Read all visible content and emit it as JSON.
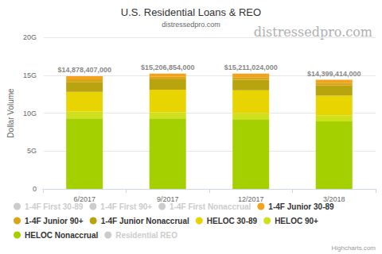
{
  "chart_data": {
    "type": "bar",
    "title": "U.S. Residential Loans & REO",
    "subtitle": "distressedpro.com",
    "annotations": [
      "distressedpro.com",
      "Highcharts.com"
    ],
    "y_label": "Dollar Volume",
    "categories": [
      "6/2017",
      "9/2017",
      "12/2017",
      "3/2018"
    ],
    "stacked": true,
    "grid": true,
    "legend": "bottom",
    "series": [
      {
        "name": "1-4F First 30-89",
        "color": "#cccccc",
        "values": [
          null,
          null,
          null,
          null
        ]
      },
      {
        "name": "1-4F First 90+",
        "color": "#cccccc",
        "values": [
          null,
          null,
          null,
          null
        ]
      },
      {
        "name": "1-4F First Nonaccrual",
        "color": "#cccccc",
        "values": [
          null,
          null,
          null,
          null
        ]
      },
      {
        "name": "1-4F Junior 30-89",
        "color": "#f4a21c",
        "values": [
          428407000,
          406854000,
          461024000,
          399414000
        ]
      },
      {
        "name": "1-4F Junior 90+",
        "color": "#d9a61a",
        "values": [
          350000000,
          350000000,
          350000000,
          350000000
        ]
      },
      {
        "name": "1-4F Junior Nonaccrual",
        "color": "#b8a40e",
        "values": [
          1300000000,
          1350000000,
          1400000000,
          1350000000
        ]
      },
      {
        "name": "HELOC 30-89",
        "color": "#e8d400",
        "values": [
          2600000000,
          3000000000,
          3000000000,
          2600000000
        ]
      },
      {
        "name": "HELOC 90+",
        "color": "#cfe01c",
        "values": [
          900000000,
          800000000,
          800000000,
          800000000
        ]
      },
      {
        "name": "HELOC Nonaccrual",
        "color": "#a4d000",
        "values": [
          9300000000,
          9300000000,
          9200000000,
          8900000000
        ]
      },
      {
        "name": "Residential REO",
        "color": "#cccccc",
        "values": [
          null,
          null,
          null,
          null
        ]
      }
    ],
    "totals": [
      14878407000,
      15206854000,
      15211024000,
      14399414000
    ],
    "total_labels": [
      "$14,878,407,000",
      "$15,206,854,000",
      "$15,211,024,000",
      "$14,399,414,000"
    ],
    "ylim": [
      0,
      20000000000
    ],
    "yticks": [
      0,
      {
        "value": 5000000000,
        "label": "5G"
      },
      {
        "value": 10000000000,
        "label": "10G"
      },
      {
        "value": 15000000000,
        "label": "15G"
      },
      {
        "value": 20000000000,
        "label": "20G"
      }
    ]
  }
}
